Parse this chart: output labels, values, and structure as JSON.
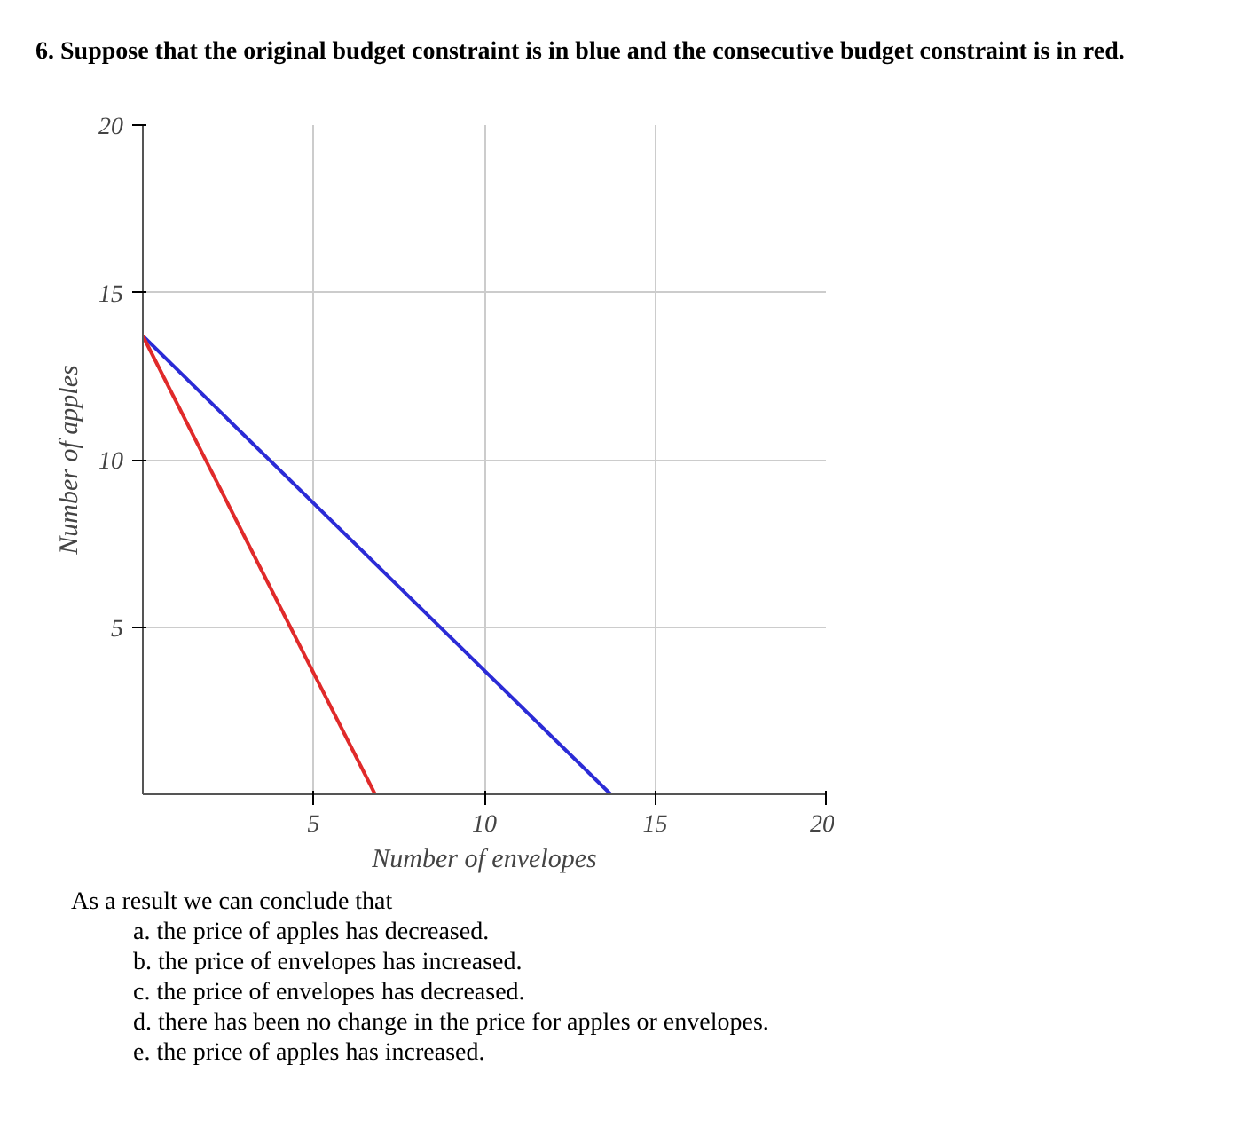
{
  "chart_data": {
    "type": "line",
    "title": "6. Suppose that the original budget constraint is in blue and the consecutive budget constraint is in red.",
    "xlabel": "Number of envelopes",
    "ylabel": "Number of apples",
    "series": [
      {
        "color": "#2b2bd6",
        "x": [
          0,
          13.7
        ],
        "values": [
          13.7,
          0
        ]
      },
      {
        "color": "#e02a2a",
        "x": [
          0,
          6.8
        ],
        "values": [
          13.7,
          0
        ]
      }
    ],
    "xlim": [
      0,
      20
    ],
    "ylim": [
      0,
      20
    ],
    "xticks": [
      5,
      10,
      15,
      20
    ],
    "yticks": [
      5,
      10,
      15,
      20
    ],
    "grid": true,
    "annotations": [
      "As a result we can conclude that",
      "a.  the price of apples has decreased.",
      "b.  the price of envelopes has increased.",
      "c.  the price of envelopes has decreased.",
      "d.  there has been no change in the price for apples or envelopes.",
      "e.  the price of apples has increased."
    ]
  }
}
